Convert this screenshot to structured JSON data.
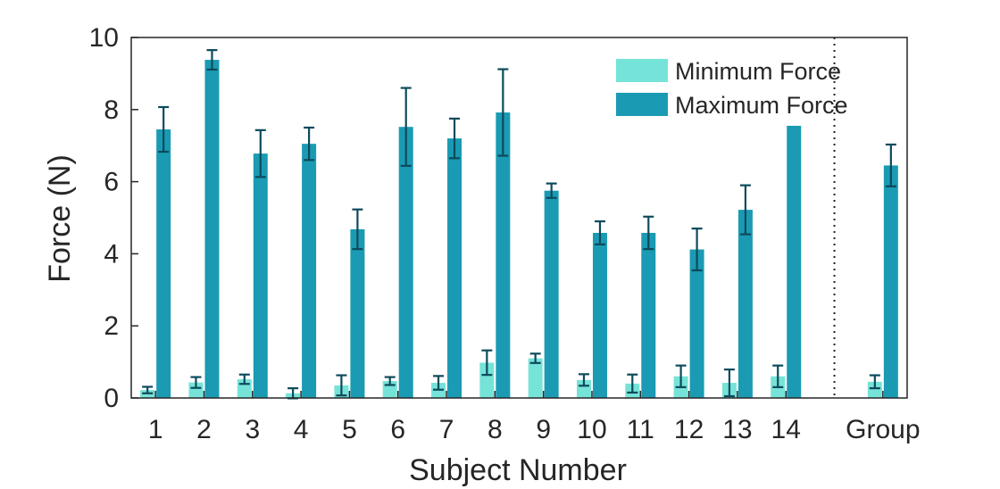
{
  "chart_data": {
    "type": "bar",
    "xlabel": "Subject Number",
    "ylabel": "Force (N)",
    "ylim": [
      0,
      10
    ],
    "yticks": [
      0,
      2,
      4,
      6,
      8,
      10
    ],
    "categories": [
      "1",
      "2",
      "3",
      "4",
      "5",
      "6",
      "7",
      "8",
      "9",
      "10",
      "11",
      "12",
      "13",
      "14",
      "Group"
    ],
    "grid": false,
    "legend_position": "top-right",
    "separator_before_category": "Group",
    "series": [
      {
        "name": "Minimum Force",
        "color": "#76e3d8",
        "values": [
          0.22,
          0.43,
          0.52,
          0.13,
          0.35,
          0.47,
          0.42,
          0.98,
          1.1,
          0.5,
          0.4,
          0.6,
          0.42,
          0.6,
          0.45
        ],
        "errors": [
          0.09,
          0.15,
          0.13,
          0.14,
          0.28,
          0.11,
          0.19,
          0.34,
          0.13,
          0.16,
          0.25,
          0.3,
          0.37,
          0.3,
          0.18
        ]
      },
      {
        "name": "Maximum Force",
        "color": "#1a9bb3",
        "values": [
          7.45,
          9.38,
          6.78,
          7.05,
          4.68,
          7.52,
          7.2,
          7.92,
          5.75,
          4.58,
          4.58,
          4.12,
          5.22,
          7.55,
          6.45
        ],
        "errors": [
          0.62,
          0.27,
          0.65,
          0.45,
          0.55,
          1.08,
          0.55,
          1.2,
          0.2,
          0.32,
          0.45,
          0.58,
          0.68,
          0.0,
          0.58
        ]
      }
    ],
    "error_bar_color": "#0d4a5c"
  }
}
